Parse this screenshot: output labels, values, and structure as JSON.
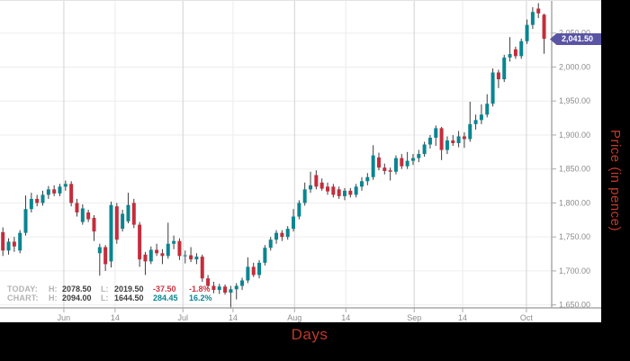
{
  "chart_data": {
    "type": "candlestick",
    "title": "",
    "xlabel": "Days",
    "ylabel": "Price (in pence)",
    "ylim": [
      1645.6,
      2097.3
    ],
    "grid": true,
    "x_ticks": [
      {
        "label": "Jun",
        "pos": 10.7,
        "major": true
      },
      {
        "label": "14",
        "pos": 19.7,
        "major": false
      },
      {
        "label": "Jul",
        "pos": 31.6,
        "major": true
      },
      {
        "label": "14",
        "pos": 40.4,
        "major": false
      },
      {
        "label": "Aug",
        "pos": 51.2,
        "major": true
      },
      {
        "label": "14",
        "pos": 60.2,
        "major": false
      },
      {
        "label": "Sep",
        "pos": 72.2,
        "major": true
      },
      {
        "label": "14",
        "pos": 80.7,
        "major": false
      },
      {
        "label": "Oct",
        "pos": 91.9,
        "major": true
      }
    ],
    "y_ticks": [
      {
        "value": 2050,
        "label": "2,050.00"
      },
      {
        "value": 2000,
        "label": "2,000.00"
      },
      {
        "value": 1950,
        "label": "1,950.00"
      },
      {
        "value": 1900,
        "label": "1,900.00"
      },
      {
        "value": 1850,
        "label": "1,850.00"
      },
      {
        "value": 1800,
        "label": "1,800.00"
      },
      {
        "value": 1750,
        "label": "1,750.00"
      },
      {
        "value": 1700,
        "label": "1,700.00"
      },
      {
        "value": 1650,
        "label": "1,650.00"
      }
    ],
    "candles": [
      [
        1757,
        1764,
        1722,
        1730
      ],
      [
        1730,
        1748,
        1724,
        1743
      ],
      [
        1743,
        1750,
        1728,
        1736
      ],
      [
        1730,
        1760,
        1726,
        1756
      ],
      [
        1756,
        1811,
        1752,
        1791
      ],
      [
        1791,
        1815,
        1786,
        1806
      ],
      [
        1806,
        1812,
        1795,
        1800
      ],
      [
        1800,
        1818,
        1796,
        1812
      ],
      [
        1812,
        1825,
        1806,
        1820
      ],
      [
        1820,
        1826,
        1810,
        1814
      ],
      [
        1814,
        1828,
        1810,
        1824
      ],
      [
        1824,
        1833,
        1818,
        1828
      ],
      [
        1828,
        1832,
        1795,
        1800
      ],
      [
        1800,
        1806,
        1780,
        1786
      ],
      [
        1772,
        1798,
        1768,
        1792
      ],
      [
        1786,
        1790,
        1772,
        1776
      ],
      [
        1778,
        1782,
        1744,
        1758
      ],
      [
        1726,
        1740,
        1693,
        1735
      ],
      [
        1735,
        1738,
        1700,
        1710
      ],
      [
        1714,
        1802,
        1705,
        1797
      ],
      [
        1795,
        1800,
        1740,
        1746
      ],
      [
        1762,
        1790,
        1758,
        1784
      ],
      [
        1773,
        1815,
        1770,
        1797
      ],
      [
        1800,
        1806,
        1763,
        1768
      ],
      [
        1768,
        1772,
        1706,
        1717
      ],
      [
        1724,
        1728,
        1694,
        1714
      ],
      [
        1714,
        1736,
        1710,
        1731
      ],
      [
        1731,
        1740,
        1722,
        1726
      ],
      [
        1726,
        1732,
        1710,
        1722
      ],
      [
        1722,
        1771,
        1718,
        1740
      ],
      [
        1740,
        1752,
        1732,
        1744
      ],
      [
        1744,
        1748,
        1716,
        1722
      ],
      [
        1722,
        1730,
        1711,
        1723
      ],
      [
        1723,
        1735,
        1713,
        1717
      ],
      [
        1717,
        1726,
        1710,
        1721
      ],
      [
        1721,
        1724,
        1684,
        1689
      ],
      [
        1689,
        1694,
        1674,
        1678
      ],
      [
        1678,
        1684,
        1667,
        1672
      ],
      [
        1672,
        1681,
        1666,
        1677
      ],
      [
        1677,
        1680,
        1665,
        1668
      ],
      [
        1668,
        1678,
        1644.5,
        1673
      ],
      [
        1673,
        1682,
        1658,
        1678
      ],
      [
        1678,
        1690,
        1672,
        1686
      ],
      [
        1686,
        1720,
        1682,
        1706
      ],
      [
        1706,
        1712,
        1691,
        1694
      ],
      [
        1694,
        1716,
        1689,
        1712
      ],
      [
        1712,
        1738,
        1708,
        1734
      ],
      [
        1734,
        1750,
        1730,
        1746
      ],
      [
        1746,
        1760,
        1740,
        1756
      ],
      [
        1756,
        1760,
        1744,
        1750
      ],
      [
        1750,
        1766,
        1746,
        1762
      ],
      [
        1762,
        1791,
        1758,
        1780
      ],
      [
        1780,
        1804,
        1776,
        1800
      ],
      [
        1800,
        1830,
        1796,
        1820
      ],
      [
        1820,
        1846,
        1815,
        1826
      ],
      [
        1841,
        1848,
        1820,
        1824
      ],
      [
        1830,
        1836,
        1818,
        1821
      ],
      [
        1824,
        1830,
        1812,
        1817
      ],
      [
        1824,
        1828,
        1808,
        1812
      ],
      [
        1820,
        1824,
        1806,
        1810
      ],
      [
        1810,
        1822,
        1804,
        1818
      ],
      [
        1818,
        1822,
        1808,
        1812
      ],
      [
        1812,
        1828,
        1808,
        1824
      ],
      [
        1824,
        1838,
        1818,
        1832
      ],
      [
        1832,
        1844,
        1826,
        1838
      ],
      [
        1838,
        1885,
        1834,
        1870
      ],
      [
        1867,
        1874,
        1848,
        1852
      ],
      [
        1852,
        1858,
        1842,
        1847
      ],
      [
        1848,
        1852,
        1833,
        1846
      ],
      [
        1846,
        1870,
        1842,
        1866
      ],
      [
        1866,
        1872,
        1850,
        1854
      ],
      [
        1854,
        1875,
        1850,
        1862
      ],
      [
        1862,
        1872,
        1856,
        1866
      ],
      [
        1866,
        1878,
        1860,
        1872
      ],
      [
        1872,
        1890,
        1868,
        1886
      ],
      [
        1886,
        1900,
        1880,
        1896
      ],
      [
        1896,
        1914,
        1884,
        1910
      ],
      [
        1910,
        1912,
        1863,
        1878
      ],
      [
        1878,
        1898,
        1872,
        1892
      ],
      [
        1892,
        1900,
        1884,
        1888
      ],
      [
        1888,
        1906,
        1882,
        1898
      ],
      [
        1898,
        1904,
        1881,
        1894
      ],
      [
        1894,
        1949,
        1890,
        1916
      ],
      [
        1916,
        1930,
        1908,
        1922
      ],
      [
        1922,
        1945,
        1916,
        1930
      ],
      [
        1930,
        1960,
        1926,
        1946
      ],
      [
        1946,
        1998,
        1942,
        1992
      ],
      [
        1992,
        1996,
        1969,
        1982
      ],
      [
        1982,
        2018,
        1978,
        2014
      ],
      [
        2014,
        2044,
        2008,
        2019
      ],
      [
        2026,
        2030,
        2012,
        2016
      ],
      [
        2016,
        2042,
        2012,
        2038
      ],
      [
        2038,
        2070,
        2034,
        2062
      ],
      [
        2062,
        2088,
        2056,
        2081
      ],
      [
        2086,
        2094,
        2072,
        2079
      ],
      [
        2077,
        2078.5,
        2019.5,
        2041.5
      ]
    ],
    "last_price": {
      "value": 2041.5,
      "label": "2,041.50"
    }
  },
  "legend": {
    "rows": [
      {
        "label": "TODAY:",
        "high_label": "H:",
        "high": "2078.50",
        "low_label": "L:",
        "low": "2019.50",
        "change": "-37.50",
        "change_pct": "-1.8%",
        "change_color": "#cc3340"
      },
      {
        "label": "CHART:",
        "high_label": "H:",
        "high": "2094.00",
        "low_label": "L:",
        "low": "1644.50",
        "change": "284.45",
        "change_pct": "16.2%",
        "change_color": "#0a8591"
      }
    ]
  },
  "axis_titles": {
    "x": "Days",
    "y": "Price (in pence)"
  },
  "colors": {
    "up": "#0a8591",
    "down": "#c42d3b",
    "wick": "#3c3c3c",
    "grid_major": "#d2d2d2",
    "grid_minor": "#ebebeb",
    "grid_horizontal": "#ededed",
    "axis_line": "#aaaaaa",
    "tick_text": "#8c8c8c",
    "axis_title_red": "#c0392b",
    "tag_bg": "#5a54a4",
    "tag_text": "#ffffff",
    "background": "#000000",
    "chart_background": "#ffffff"
  }
}
